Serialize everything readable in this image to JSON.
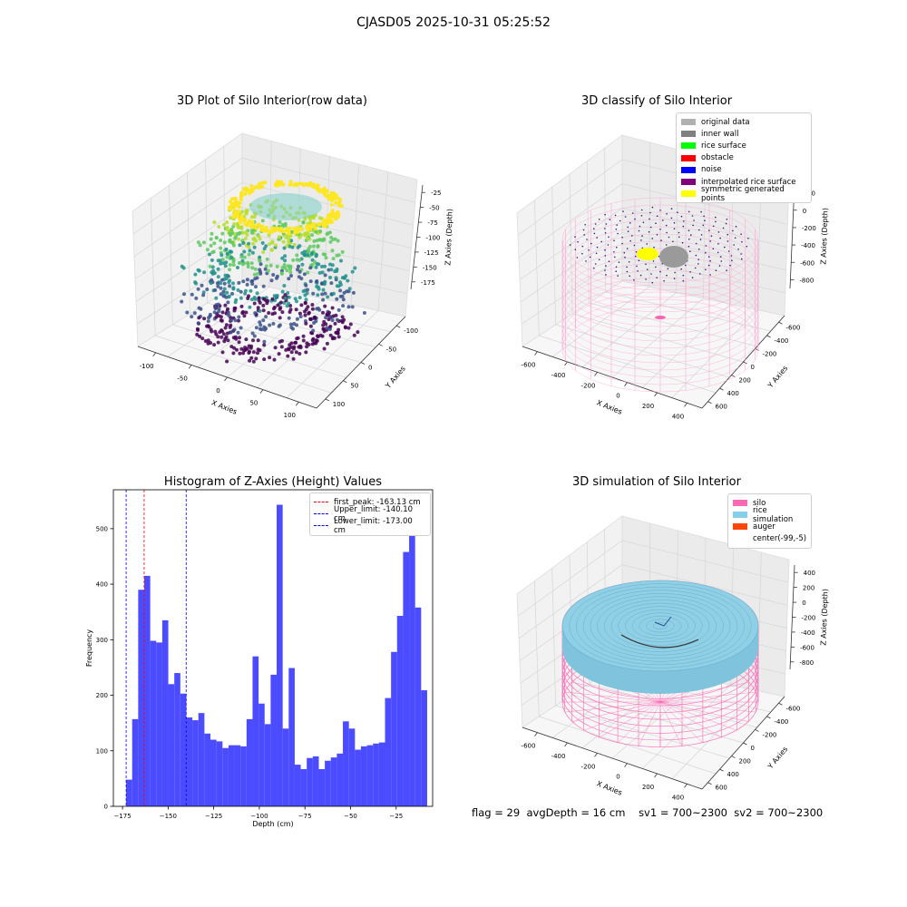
{
  "suptitle": "CJASD05 2025-10-31 05:25:52",
  "panels": {
    "raw": {
      "title": "3D Plot of Silo Interior(row data)",
      "xlabel": "X Axies",
      "ylabel": "Y Axies",
      "zlabel": "Z Axies (Depth)",
      "xticks": [
        "-100",
        "-50",
        "0",
        "50",
        "100"
      ],
      "yticks": [
        "100",
        "50",
        "0",
        "-50",
        "-100"
      ],
      "zticks": [
        "-25",
        "-50",
        "-75",
        "-100",
        "-125",
        "-150",
        "-175"
      ]
    },
    "classify": {
      "title": "3D classify of Silo Interior",
      "xlabel": "X Axies",
      "ylabel": "Y Axies",
      "zlabel": "Z Axies (Depth)",
      "xticks": [
        "-600",
        "-400",
        "-200",
        "0",
        "200",
        "400"
      ],
      "yticks": [
        "600",
        "400",
        "200",
        "0",
        "-200",
        "-400",
        "-600"
      ],
      "zticks": [
        "200",
        "0",
        "-200",
        "-400",
        "-600",
        "-800"
      ],
      "legend": [
        {
          "label": "original data",
          "color": "#b0b0b0"
        },
        {
          "label": "inner wall",
          "color": "#808080"
        },
        {
          "label": "rice surface",
          "color": "#00ff00"
        },
        {
          "label": "obstacle",
          "color": "#ff0000"
        },
        {
          "label": "noise",
          "color": "#0000ff"
        },
        {
          "label": "interpolated rice surface",
          "color": "#800080"
        },
        {
          "label": "symmetric generated points",
          "color": "#ffff00"
        }
      ]
    },
    "simulation": {
      "title": "3D simulation of Silo Interior",
      "xlabel": "X Axies",
      "ylabel": "Y Axies",
      "zlabel": "Z Axies (Depth)",
      "xticks": [
        "-600",
        "-400",
        "-200",
        "0",
        "200",
        "400"
      ],
      "yticks": [
        "600",
        "400",
        "200",
        "0",
        "-200",
        "-400",
        "-600"
      ],
      "zticks": [
        "400",
        "200",
        "0",
        "-200",
        "-400",
        "-600",
        "-800"
      ],
      "legend": [
        {
          "label": "silo",
          "color": "#ff69b4"
        },
        {
          "label": "rice simulation",
          "color": "#87ceeb"
        },
        {
          "label": "auger",
          "color": "#ff4500"
        },
        {
          "label": "center(-99,-5)",
          "color": ""
        }
      ]
    }
  },
  "status": {
    "flag": "flag = 29",
    "avg_depth": "avgDepth = 16 cm",
    "sv1": "sv1 = 700~2300",
    "sv2": "sv2 = 700~2300"
  },
  "colors": {
    "bar": "#4b4bff",
    "first_peak": "#ff0000",
    "limits": "#0000ff"
  },
  "chart_data": {
    "type": "bar",
    "title": "Histogram of Z-Axies (Height) Values",
    "xlabel": "Depth (cm)",
    "ylabel": "Frequency",
    "xlim": [
      -180,
      -5
    ],
    "ylim": [
      0,
      570
    ],
    "xticks": [
      -175,
      -150,
      -125,
      -100,
      -75,
      -50,
      -25
    ],
    "yticks": [
      0,
      100,
      200,
      300,
      400,
      500
    ],
    "bin_start": -173.0,
    "bin_width": 3.3,
    "values": [
      48,
      157,
      390,
      415,
      298,
      295,
      335,
      220,
      240,
      203,
      160,
      155,
      168,
      131,
      120,
      117,
      105,
      110,
      110,
      108,
      157,
      270,
      185,
      148,
      237,
      543,
      140,
      249,
      75,
      67,
      87,
      90,
      67,
      82,
      88,
      95,
      153,
      140,
      102,
      108,
      110,
      113,
      115,
      195,
      278,
      343,
      458,
      512,
      358,
      209
    ],
    "lines": [
      {
        "label": "first_peak: -163.13 cm",
        "value": -163.13,
        "color": "#ff0000"
      },
      {
        "label": "Upper_limit: -140.10 cm",
        "value": -140.1,
        "color": "#0000ff"
      },
      {
        "label": "Lower_limit: -173.00 cm",
        "value": -173.0,
        "color": "#0000ff"
      }
    ]
  }
}
